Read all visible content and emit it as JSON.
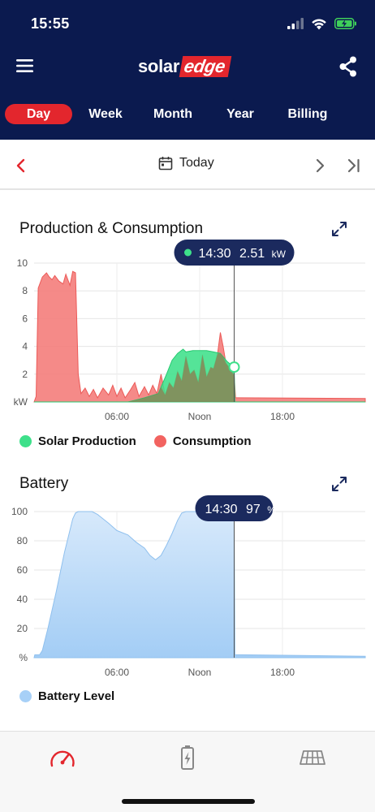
{
  "status": {
    "time": "15:55"
  },
  "brand": {
    "part1": "solar",
    "part2": "edge"
  },
  "tabs": [
    {
      "label": "Day",
      "active": true
    },
    {
      "label": "Week",
      "active": false
    },
    {
      "label": "Month",
      "active": false
    },
    {
      "label": "Year",
      "active": false
    },
    {
      "label": "Billing",
      "active": false
    }
  ],
  "date_nav": {
    "label": "Today"
  },
  "colors": {
    "header_bg": "#0b1a4f",
    "accent": "#e3262d",
    "solar": "#3ee08a",
    "consumption": "#f47a78",
    "battery": "#a7d0f7",
    "tooltip_bg": "#1b2a5e"
  },
  "production_section": {
    "title": "Production & Consumption",
    "tooltip_time": "14:30",
    "tooltip_value": "2.51",
    "tooltip_unit": "kW",
    "legend": [
      "Solar Production",
      "Consumption"
    ]
  },
  "battery_section": {
    "title": "Battery",
    "tooltip_time": "14:30",
    "tooltip_value": "97",
    "tooltip_unit": "%",
    "legend": [
      "Battery Level"
    ]
  },
  "chart_data": [
    {
      "type": "area",
      "title": "Production & Consumption",
      "ylabel": "kW",
      "xlim": [
        0,
        24
      ],
      "ylim": [
        0,
        10
      ],
      "y_ticks": [
        "kW",
        "2",
        "4",
        "6",
        "8",
        "10"
      ],
      "y_tick_values": [
        0,
        2,
        4,
        6,
        8,
        10
      ],
      "x_ticks": [
        "06:00",
        "Noon",
        "18:00"
      ],
      "x_tick_values": [
        6,
        12,
        18
      ],
      "grid": true,
      "legend_position": "bottom",
      "cursor_x": 14.5,
      "series": [
        {
          "name": "Solar Production",
          "color": "#3ee08a",
          "points": [
            [
              0,
              0
            ],
            [
              6.8,
              0
            ],
            [
              7.2,
              0.1
            ],
            [
              8,
              0.3
            ],
            [
              9,
              0.6
            ],
            [
              9.6,
              2.0
            ],
            [
              10,
              3.0
            ],
            [
              10.4,
              3.5
            ],
            [
              10.8,
              3.8
            ],
            [
              11,
              3.6
            ],
            [
              11.5,
              3.7
            ],
            [
              12,
              3.7
            ],
            [
              12.5,
              3.7
            ],
            [
              13,
              3.6
            ],
            [
              13.5,
              3.5
            ],
            [
              14,
              2.9
            ],
            [
              14.5,
              2.51
            ],
            [
              14.55,
              0
            ],
            [
              24,
              0
            ]
          ]
        },
        {
          "name": "Consumption",
          "color": "#f47a78",
          "points": [
            [
              0,
              0
            ],
            [
              0.15,
              0.4
            ],
            [
              0.3,
              8.2
            ],
            [
              0.6,
              9.0
            ],
            [
              0.9,
              9.3
            ],
            [
              1.1,
              9.0
            ],
            [
              1.3,
              8.8
            ],
            [
              1.5,
              9.1
            ],
            [
              1.8,
              8.7
            ],
            [
              2.1,
              8.5
            ],
            [
              2.3,
              9.2
            ],
            [
              2.6,
              8.4
            ],
            [
              2.8,
              9.4
            ],
            [
              3.0,
              9.3
            ],
            [
              3.2,
              2.0
            ],
            [
              3.4,
              0.6
            ],
            [
              3.7,
              1.0
            ],
            [
              4.0,
              0.4
            ],
            [
              4.3,
              0.9
            ],
            [
              4.6,
              0.3
            ],
            [
              5.0,
              1.0
            ],
            [
              5.4,
              0.5
            ],
            [
              5.7,
              1.2
            ],
            [
              6.0,
              0.4
            ],
            [
              6.3,
              1.0
            ],
            [
              6.6,
              0.3
            ],
            [
              7.0,
              0.9
            ],
            [
              7.3,
              1.4
            ],
            [
              7.6,
              0.4
            ],
            [
              8.0,
              1.1
            ],
            [
              8.3,
              0.5
            ],
            [
              8.6,
              1.2
            ],
            [
              8.9,
              0.6
            ],
            [
              9.2,
              2.0
            ],
            [
              9.5,
              0.5
            ],
            [
              9.8,
              1.4
            ],
            [
              10.1,
              1.0
            ],
            [
              10.4,
              2.2
            ],
            [
              10.7,
              1.5
            ],
            [
              11.0,
              3.3
            ],
            [
              11.3,
              2.0
            ],
            [
              11.6,
              2.3
            ],
            [
              11.9,
              1.4
            ],
            [
              12.2,
              3.4
            ],
            [
              12.5,
              1.8
            ],
            [
              12.8,
              2.5
            ],
            [
              13.0,
              2.4
            ],
            [
              13.3,
              3.5
            ],
            [
              13.5,
              5.0
            ],
            [
              13.7,
              4.0
            ],
            [
              13.9,
              2.8
            ],
            [
              14.2,
              2.4
            ],
            [
              14.5,
              1.9
            ],
            [
              14.6,
              0.3
            ],
            [
              14.8,
              0.3
            ],
            [
              24,
              0.25
            ]
          ]
        }
      ]
    },
    {
      "type": "area",
      "title": "Battery",
      "ylabel": "%",
      "xlim": [
        0,
        24
      ],
      "ylim": [
        0,
        100
      ],
      "y_ticks": [
        "%",
        "20",
        "40",
        "60",
        "80",
        "100"
      ],
      "y_tick_values": [
        0,
        20,
        40,
        60,
        80,
        100
      ],
      "x_ticks": [
        "06:00",
        "Noon",
        "18:00"
      ],
      "x_tick_values": [
        6,
        12,
        18
      ],
      "grid": true,
      "legend_position": "bottom",
      "cursor_x": 14.5,
      "series": [
        {
          "name": "Battery Level",
          "color": "#a7d0f7",
          "points": [
            [
              0,
              0
            ],
            [
              0.05,
              2
            ],
            [
              0.4,
              2
            ],
            [
              0.6,
              5
            ],
            [
              1.0,
              20
            ],
            [
              1.6,
              45
            ],
            [
              2.2,
              72
            ],
            [
              2.8,
              95
            ],
            [
              3.0,
              99
            ],
            [
              3.2,
              100
            ],
            [
              4.2,
              100
            ],
            [
              4.6,
              98
            ],
            [
              5.4,
              92
            ],
            [
              6.0,
              87
            ],
            [
              6.8,
              84
            ],
            [
              7.4,
              79
            ],
            [
              8.0,
              75
            ],
            [
              8.4,
              70
            ],
            [
              8.8,
              67
            ],
            [
              9.2,
              70
            ],
            [
              9.6,
              77
            ],
            [
              10.0,
              85
            ],
            [
              10.4,
              94
            ],
            [
              10.7,
              99
            ],
            [
              11.0,
              100
            ],
            [
              13.0,
              100
            ],
            [
              14.3,
              99
            ],
            [
              14.5,
              97
            ],
            [
              14.55,
              2
            ],
            [
              15.0,
              2
            ],
            [
              24,
              1
            ]
          ]
        }
      ]
    }
  ]
}
